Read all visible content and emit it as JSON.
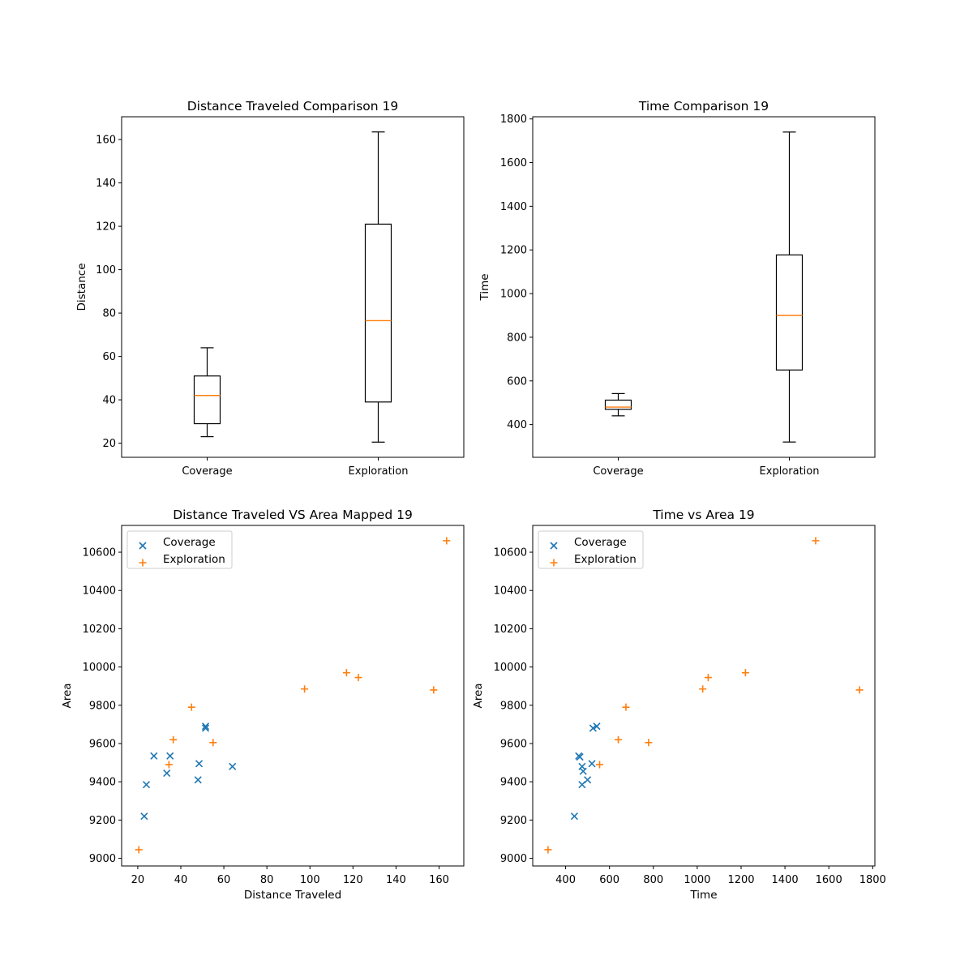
{
  "figure": {
    "background": "#ffffff"
  },
  "colors": {
    "coverage": "#1f77b4",
    "exploration": "#ff7f0e",
    "median": "#ff7f0e",
    "box": "#000000"
  },
  "chart_data": [
    {
      "type": "box",
      "title": "Distance Traveled Comparison 19",
      "xlabel": "",
      "ylabel": "Distance",
      "categories": [
        "Coverage",
        "Exploration"
      ],
      "ylim": [
        13.5,
        170.5
      ],
      "yticks": [
        20,
        40,
        60,
        80,
        100,
        120,
        140,
        160
      ],
      "boxes": [
        {
          "name": "Coverage",
          "whisker_low": 23.0,
          "q1": 29.0,
          "median": 42.0,
          "q3": 51.0,
          "whisker_high": 64.0
        },
        {
          "name": "Exploration",
          "whisker_low": 20.5,
          "q1": 39.0,
          "median": 76.5,
          "q3": 121.0,
          "whisker_high": 163.5
        }
      ],
      "grid": false
    },
    {
      "type": "box",
      "title": "Time Comparison 19",
      "xlabel": "",
      "ylabel": "Time",
      "categories": [
        "Coverage",
        "Exploration"
      ],
      "ylim": [
        250,
        1810
      ],
      "yticks": [
        400,
        600,
        800,
        1000,
        1200,
        1400,
        1600,
        1800
      ],
      "boxes": [
        {
          "name": "Coverage",
          "whisker_low": 440,
          "q1": 470,
          "median": 480,
          "q3": 512,
          "whisker_high": 542
        },
        {
          "name": "Exploration",
          "whisker_low": 320,
          "q1": 650,
          "median": 900,
          "q3": 1177,
          "whisker_high": 1740
        }
      ],
      "grid": false
    },
    {
      "type": "scatter",
      "title": "Distance Traveled VS Area Mapped 19",
      "xlabel": "Distance Traveled",
      "ylabel": "Area",
      "xlim": [
        12.5,
        171.5
      ],
      "ylim": [
        8960,
        10740
      ],
      "xticks": [
        20,
        40,
        60,
        80,
        100,
        120,
        140,
        160
      ],
      "yticks": [
        9000,
        9200,
        9400,
        9600,
        9800,
        10000,
        10200,
        10400,
        10600
      ],
      "legend": "upper-left",
      "series": [
        {
          "name": "Coverage",
          "marker": "x",
          "points": [
            [
              23.0,
              9220
            ],
            [
              24.0,
              9385
            ],
            [
              27.5,
              9535
            ],
            [
              33.5,
              9445
            ],
            [
              35.0,
              9535
            ],
            [
              48.0,
              9410
            ],
            [
              48.5,
              9495
            ],
            [
              51.5,
              9690
            ],
            [
              51.5,
              9680
            ],
            [
              64.0,
              9480
            ]
          ]
        },
        {
          "name": "Exploration",
          "marker": "+",
          "points": [
            [
              20.5,
              9045
            ],
            [
              34.5,
              9490
            ],
            [
              36.5,
              9620
            ],
            [
              45.0,
              9790
            ],
            [
              55.0,
              9605
            ],
            [
              97.5,
              9885
            ],
            [
              117.0,
              9970
            ],
            [
              122.5,
              9945
            ],
            [
              157.5,
              9880
            ],
            [
              163.5,
              10660
            ]
          ]
        }
      ],
      "grid": false
    },
    {
      "type": "scatter",
      "title": "Time vs Area 19",
      "xlabel": "Time",
      "ylabel": "Area",
      "xlim": [
        250,
        1810
      ],
      "ylim": [
        8960,
        10740
      ],
      "xticks": [
        400,
        600,
        800,
        1000,
        1200,
        1400,
        1600,
        1800
      ],
      "yticks": [
        9000,
        9200,
        9400,
        9600,
        9800,
        10000,
        10200,
        10400,
        10600
      ],
      "legend": "upper-left",
      "series": [
        {
          "name": "Coverage",
          "marker": "x",
          "points": [
            [
              440,
              9220
            ],
            [
              460,
              9535
            ],
            [
              465,
              9530
            ],
            [
              475,
              9385
            ],
            [
              475,
              9480
            ],
            [
              480,
              9455
            ],
            [
              500,
              9410
            ],
            [
              520,
              9495
            ],
            [
              525,
              9680
            ],
            [
              542,
              9690
            ]
          ]
        },
        {
          "name": "Exploration",
          "marker": "+",
          "points": [
            [
              320,
              9045
            ],
            [
              555,
              9490
            ],
            [
              640,
              9620
            ],
            [
              675,
              9790
            ],
            [
              778,
              9605
            ],
            [
              1025,
              9885
            ],
            [
              1050,
              9945
            ],
            [
              1220,
              9970
            ],
            [
              1540,
              10660
            ],
            [
              1740,
              9880
            ]
          ]
        }
      ],
      "grid": false
    }
  ]
}
